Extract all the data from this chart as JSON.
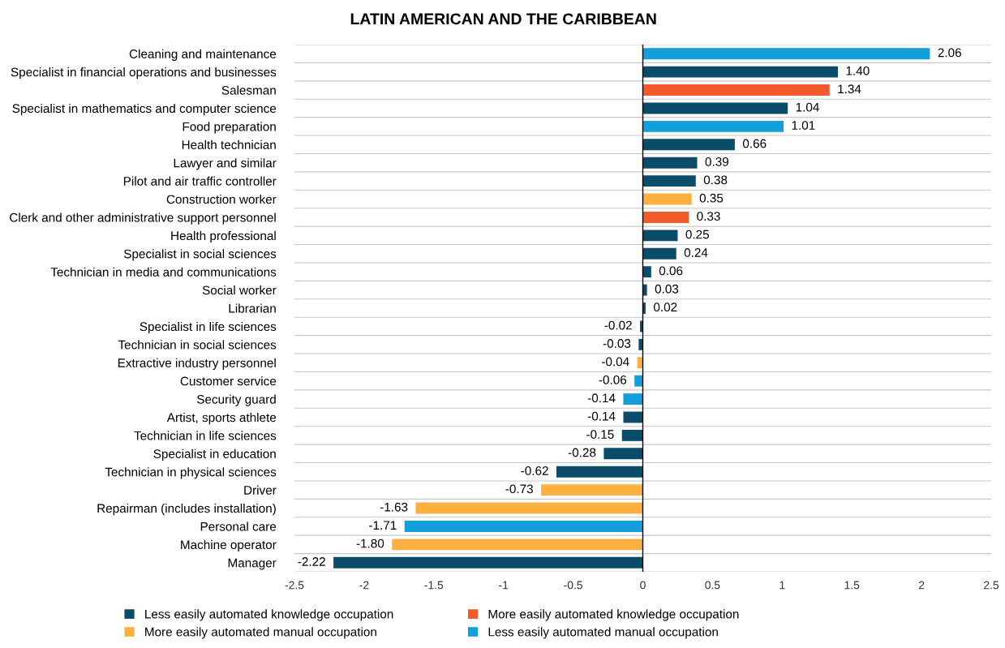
{
  "chart_data": {
    "type": "bar",
    "orientation": "horizontal",
    "title": "LATIN AMERICAN AND THE CARIBBEAN",
    "categories": [
      "Cleaning and maintenance",
      "Specialist in financial operations and businesses",
      "Salesman",
      "Specialist in mathematics and computer science",
      "Food preparation",
      "Health technician",
      "Lawyer and similar",
      "Pilot and air traffic controller",
      "Construction worker",
      "Clerk and other administrative support personnel",
      "Health professional",
      "Specialist in social sciences",
      "Technician in media and communications",
      "Social worker",
      "Librarian",
      "Specialist in life sciences",
      "Technician in social sciences",
      "Extractive industry personnel",
      "Customer service",
      "Security guard",
      "Artist, sports athlete",
      "Technician in life sciences",
      "Specialist in education",
      "Technician in physical sciences",
      "Driver",
      "Repairman (includes installation)",
      "Personal care",
      "Machine operator",
      "Manager"
    ],
    "series": [
      {
        "name": "Less easily automated knowledge occupation",
        "color": "#0b4d68",
        "values": [
          null,
          1.4,
          null,
          1.04,
          null,
          0.66,
          0.39,
          0.38,
          null,
          null,
          0.25,
          0.24,
          0.06,
          0.03,
          0.02,
          -0.02,
          -0.03,
          null,
          null,
          null,
          -0.14,
          -0.15,
          -0.28,
          -0.62,
          null,
          null,
          null,
          null,
          -2.22
        ],
        "value_labels": [
          null,
          "1.40",
          null,
          "1.04",
          null,
          "0.66",
          "0.39",
          "0.38",
          null,
          null,
          "0.25",
          "0.24",
          "0.06",
          "0.03",
          "0.02",
          "-0.02",
          "-0.03",
          null,
          null,
          null,
          "-0.14",
          "-0.15",
          "-0.28",
          "-0.62",
          null,
          null,
          null,
          null,
          "-2.22"
        ]
      },
      {
        "name": "More easily automated knowledge occupation",
        "color": "#f15a2b",
        "values": [
          null,
          null,
          1.34,
          null,
          null,
          null,
          null,
          null,
          null,
          0.33,
          null,
          null,
          null,
          null,
          null,
          null,
          null,
          null,
          null,
          null,
          null,
          null,
          null,
          null,
          null,
          null,
          null,
          null,
          null
        ],
        "value_labels": [
          null,
          null,
          "1.34",
          null,
          null,
          null,
          null,
          null,
          null,
          "0.33",
          null,
          null,
          null,
          null,
          null,
          null,
          null,
          null,
          null,
          null,
          null,
          null,
          null,
          null,
          null,
          null,
          null,
          null,
          null
        ]
      },
      {
        "name": "More easily automated manual occupation",
        "color": "#fbb040",
        "values": [
          null,
          null,
          null,
          null,
          null,
          null,
          null,
          null,
          0.35,
          null,
          null,
          null,
          null,
          null,
          null,
          null,
          null,
          -0.04,
          null,
          null,
          null,
          null,
          null,
          null,
          -0.73,
          -1.63,
          null,
          -1.8,
          null
        ],
        "value_labels": [
          null,
          null,
          null,
          null,
          null,
          null,
          null,
          null,
          "0.35",
          null,
          null,
          null,
          null,
          null,
          null,
          null,
          null,
          "-0.04",
          null,
          null,
          null,
          null,
          null,
          null,
          "-0.73",
          "-1.63",
          null,
          "-1.80",
          null
        ]
      },
      {
        "name": "Less easily automated manual occupation",
        "color": "#139fda",
        "values": [
          2.06,
          null,
          null,
          null,
          1.01,
          null,
          null,
          null,
          null,
          null,
          null,
          null,
          null,
          null,
          null,
          null,
          null,
          null,
          -0.06,
          -0.14,
          null,
          null,
          null,
          null,
          null,
          null,
          -1.71,
          null,
          null
        ],
        "value_labels": [
          "2.06",
          null,
          null,
          null,
          "1.01",
          null,
          null,
          null,
          null,
          null,
          null,
          null,
          null,
          null,
          null,
          null,
          null,
          null,
          "-0.06",
          "-0.14",
          null,
          null,
          null,
          null,
          null,
          null,
          "-1.71",
          null,
          null
        ]
      }
    ],
    "xlim": [
      -2.5,
      2.5
    ],
    "xticks": [
      -2.5,
      -2,
      -1.5,
      -1,
      -0.5,
      0,
      0.5,
      1,
      1.5,
      2,
      2.5
    ],
    "ref_lines": [
      {
        "axis": "x",
        "value": 0,
        "color": "#000000"
      }
    ],
    "grid": "y",
    "legend": "bottom"
  }
}
